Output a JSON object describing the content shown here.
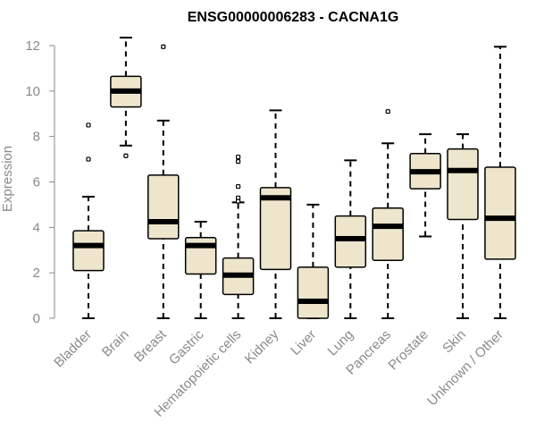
{
  "colors": {
    "box_fill": "#EDE6CC",
    "stroke": "#000000",
    "axis": "#8a8a8a"
  },
  "chart_data": {
    "type": "boxplot",
    "title": "ENSG00000006283 - CACNA1G",
    "xlabel": "",
    "ylabel": "Expression",
    "ylim": [
      0,
      12.2
    ],
    "yticks": [
      0,
      2,
      4,
      6,
      8,
      10,
      12
    ],
    "yticks_labels": [
      "0",
      "2",
      "4",
      "6",
      "8",
      "10",
      "12"
    ],
    "grid": false,
    "categories": [
      "Bladder",
      "Brain",
      "Breast",
      "Gastric",
      "Hematopoietic cells",
      "Kidney",
      "Liver",
      "Lung",
      "Pancreas",
      "Prostate",
      "Skin",
      "Unknown / Other"
    ],
    "boxes": [
      {
        "min": 0,
        "q1": 2.1,
        "median": 3.2,
        "q3": 3.85,
        "max": 5.35,
        "outliers": [
          7.0,
          8.5
        ]
      },
      {
        "min": 7.6,
        "q1": 9.3,
        "median": 10.0,
        "q3": 10.65,
        "max": 12.35,
        "outliers": [
          7.15
        ]
      },
      {
        "min": 0,
        "q1": 3.5,
        "median": 4.25,
        "q3": 6.3,
        "max": 8.7,
        "outliers": [
          11.95
        ]
      },
      {
        "min": 0,
        "q1": 1.95,
        "median": 3.2,
        "q3": 3.55,
        "max": 4.25,
        "outliers": []
      },
      {
        "min": 0,
        "q1": 1.05,
        "median": 1.9,
        "q3": 2.65,
        "max": 5.1,
        "outliers": [
          5.3,
          5.8,
          6.9,
          7.1,
          5.15
        ]
      },
      {
        "min": 0,
        "q1": 2.15,
        "median": 5.3,
        "q3": 5.75,
        "max": 9.15,
        "outliers": []
      },
      {
        "min": 0,
        "q1": 0,
        "median": 0.75,
        "q3": 2.25,
        "max": 5.0,
        "outliers": []
      },
      {
        "min": 0,
        "q1": 2.25,
        "median": 3.5,
        "q3": 4.5,
        "max": 6.95,
        "outliers": []
      },
      {
        "min": 0,
        "q1": 2.55,
        "median": 4.05,
        "q3": 4.85,
        "max": 7.7,
        "outliers": [
          9.1
        ]
      },
      {
        "min": 3.6,
        "q1": 5.7,
        "median": 6.45,
        "q3": 7.25,
        "max": 8.1,
        "outliers": []
      },
      {
        "min": 0,
        "q1": 4.35,
        "median": 6.5,
        "q3": 7.45,
        "max": 8.1,
        "outliers": []
      },
      {
        "min": 0,
        "q1": 2.6,
        "median": 4.4,
        "q3": 6.65,
        "max": 11.95,
        "outliers": []
      }
    ]
  }
}
